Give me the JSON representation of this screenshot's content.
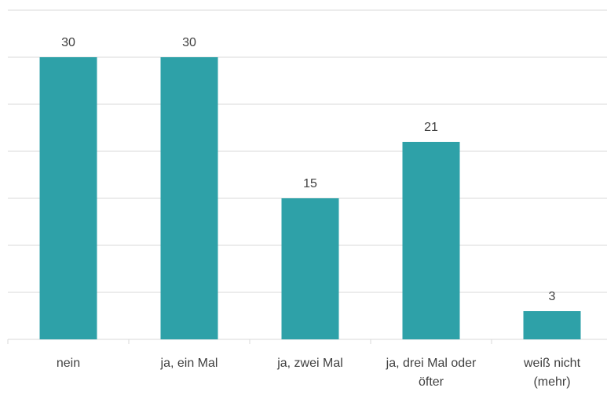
{
  "chart_data": {
    "type": "bar",
    "categories": [
      "nein",
      "ja, ein Mal",
      "ja, zwei Mal",
      "ja, drei Mal oder öfter",
      "weiß nicht (mehr)"
    ],
    "values": [
      30,
      30,
      15,
      21,
      3
    ],
    "color": "#2ea1a8",
    "ylim": [
      0,
      35
    ],
    "yticks": [
      0,
      5,
      10,
      15,
      20,
      25,
      30,
      35
    ],
    "grid": true
  }
}
